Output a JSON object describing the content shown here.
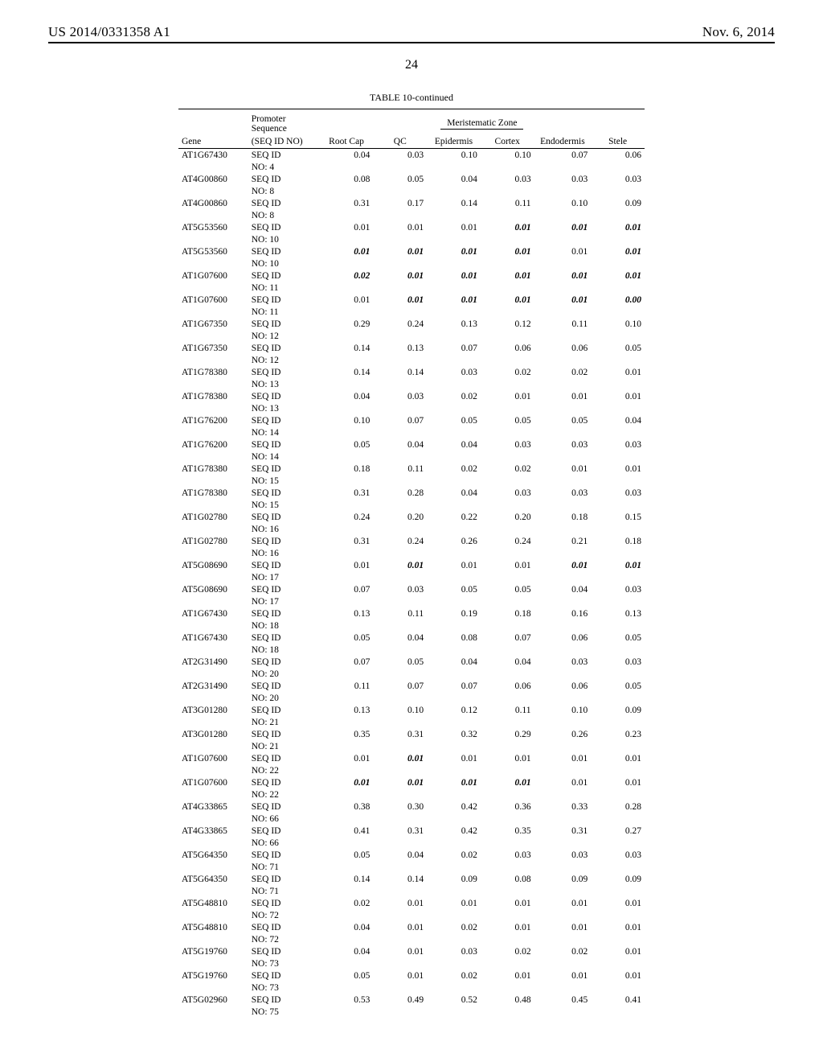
{
  "header": {
    "left": "US 2014/0331358 A1",
    "right": "Nov. 6, 2014"
  },
  "page_number": "24",
  "table_caption": "TABLE 10-continued",
  "column_group_labels": {
    "promoter": "Promoter",
    "sequence": "Sequence",
    "zone": "Meristematic Zone"
  },
  "columns": {
    "gene": "Gene",
    "seqidno": "(SEQ ID NO)",
    "rootcap": "Root Cap",
    "qc": "QC",
    "epidermis": "Epidermis",
    "cortex": "Cortex",
    "endodermis": "Endodermis",
    "stele": "Stele"
  },
  "rows": [
    {
      "gene": "AT1G67430",
      "seq": "SEQ ID",
      "no": "NO: 4",
      "v": [
        {
          "t": "0.04"
        },
        {
          "t": "0.03"
        },
        {
          "t": "0.10"
        },
        {
          "t": "0.10"
        },
        {
          "t": "0.07"
        },
        {
          "t": "0.06"
        }
      ]
    },
    {
      "gene": "AT4G00860",
      "seq": "SEQ ID",
      "no": "NO: 8",
      "v": [
        {
          "t": "0.08"
        },
        {
          "t": "0.05"
        },
        {
          "t": "0.04"
        },
        {
          "t": "0.03"
        },
        {
          "t": "0.03"
        },
        {
          "t": "0.03"
        }
      ]
    },
    {
      "gene": "AT4G00860",
      "seq": "SEQ ID",
      "no": "NO: 8",
      "v": [
        {
          "t": "0.31"
        },
        {
          "t": "0.17"
        },
        {
          "t": "0.14"
        },
        {
          "t": "0.11"
        },
        {
          "t": "0.10"
        },
        {
          "t": "0.09"
        }
      ]
    },
    {
      "gene": "AT5G53560",
      "seq": "SEQ ID",
      "no": "NO: 10",
      "v": [
        {
          "t": "0.01"
        },
        {
          "t": "0.01"
        },
        {
          "t": "0.01"
        },
        {
          "t": "0.01",
          "b": true
        },
        {
          "t": "0.01",
          "b": true
        },
        {
          "t": "0.01",
          "b": true
        }
      ]
    },
    {
      "gene": "AT5G53560",
      "seq": "SEQ ID",
      "no": "NO: 10",
      "v": [
        {
          "t": "0.01",
          "b": true
        },
        {
          "t": "0.01",
          "b": true
        },
        {
          "t": "0.01",
          "b": true
        },
        {
          "t": "0.01",
          "b": true
        },
        {
          "t": "0.01"
        },
        {
          "t": "0.01",
          "b": true
        }
      ]
    },
    {
      "gene": "AT1G07600",
      "seq": "SEQ ID",
      "no": "NO: 11",
      "v": [
        {
          "t": "0.02",
          "b": true
        },
        {
          "t": "0.01",
          "b": true
        },
        {
          "t": "0.01",
          "b": true
        },
        {
          "t": "0.01",
          "b": true
        },
        {
          "t": "0.01",
          "b": true
        },
        {
          "t": "0.01",
          "b": true
        }
      ]
    },
    {
      "gene": "AT1G07600",
      "seq": "SEQ ID",
      "no": "NO: 11",
      "v": [
        {
          "t": "0.01"
        },
        {
          "t": "0.01",
          "b": true
        },
        {
          "t": "0.01",
          "b": true
        },
        {
          "t": "0.01",
          "b": true
        },
        {
          "t": "0.01",
          "b": true
        },
        {
          "t": "0.00",
          "b": true
        }
      ]
    },
    {
      "gene": "AT1G67350",
      "seq": "SEQ ID",
      "no": "NO: 12",
      "v": [
        {
          "t": "0.29"
        },
        {
          "t": "0.24"
        },
        {
          "t": "0.13"
        },
        {
          "t": "0.12"
        },
        {
          "t": "0.11"
        },
        {
          "t": "0.10"
        }
      ]
    },
    {
      "gene": "AT1G67350",
      "seq": "SEQ ID",
      "no": "NO: 12",
      "v": [
        {
          "t": "0.14"
        },
        {
          "t": "0.13"
        },
        {
          "t": "0.07"
        },
        {
          "t": "0.06"
        },
        {
          "t": "0.06"
        },
        {
          "t": "0.05"
        }
      ]
    },
    {
      "gene": "AT1G78380",
      "seq": "SEQ ID",
      "no": "NO: 13",
      "v": [
        {
          "t": "0.14"
        },
        {
          "t": "0.14"
        },
        {
          "t": "0.03"
        },
        {
          "t": "0.02"
        },
        {
          "t": "0.02"
        },
        {
          "t": "0.01"
        }
      ]
    },
    {
      "gene": "AT1G78380",
      "seq": "SEQ ID",
      "no": "NO: 13",
      "v": [
        {
          "t": "0.04"
        },
        {
          "t": "0.03"
        },
        {
          "t": "0.02"
        },
        {
          "t": "0.01"
        },
        {
          "t": "0.01"
        },
        {
          "t": "0.01"
        }
      ]
    },
    {
      "gene": "AT1G76200",
      "seq": "SEQ ID",
      "no": "NO: 14",
      "v": [
        {
          "t": "0.10"
        },
        {
          "t": "0.07"
        },
        {
          "t": "0.05"
        },
        {
          "t": "0.05"
        },
        {
          "t": "0.05"
        },
        {
          "t": "0.04"
        }
      ]
    },
    {
      "gene": "AT1G76200",
      "seq": "SEQ ID",
      "no": "NO: 14",
      "v": [
        {
          "t": "0.05"
        },
        {
          "t": "0.04"
        },
        {
          "t": "0.04"
        },
        {
          "t": "0.03"
        },
        {
          "t": "0.03"
        },
        {
          "t": "0.03"
        }
      ]
    },
    {
      "gene": "AT1G78380",
      "seq": "SEQ ID",
      "no": "NO: 15",
      "v": [
        {
          "t": "0.18"
        },
        {
          "t": "0.11"
        },
        {
          "t": "0.02"
        },
        {
          "t": "0.02"
        },
        {
          "t": "0.01"
        },
        {
          "t": "0.01"
        }
      ]
    },
    {
      "gene": "AT1G78380",
      "seq": "SEQ ID",
      "no": "NO: 15",
      "v": [
        {
          "t": "0.31"
        },
        {
          "t": "0.28"
        },
        {
          "t": "0.04"
        },
        {
          "t": "0.03"
        },
        {
          "t": "0.03"
        },
        {
          "t": "0.03"
        }
      ]
    },
    {
      "gene": "AT1G02780",
      "seq": "SEQ ID",
      "no": "NO: 16",
      "v": [
        {
          "t": "0.24"
        },
        {
          "t": "0.20"
        },
        {
          "t": "0.22"
        },
        {
          "t": "0.20"
        },
        {
          "t": "0.18"
        },
        {
          "t": "0.15"
        }
      ]
    },
    {
      "gene": "AT1G02780",
      "seq": "SEQ ID",
      "no": "NO: 16",
      "v": [
        {
          "t": "0.31"
        },
        {
          "t": "0.24"
        },
        {
          "t": "0.26"
        },
        {
          "t": "0.24"
        },
        {
          "t": "0.21"
        },
        {
          "t": "0.18"
        }
      ]
    },
    {
      "gene": "AT5G08690",
      "seq": "SEQ ID",
      "no": "NO: 17",
      "v": [
        {
          "t": "0.01"
        },
        {
          "t": "0.01",
          "b": true
        },
        {
          "t": "0.01"
        },
        {
          "t": "0.01"
        },
        {
          "t": "0.01",
          "b": true
        },
        {
          "t": "0.01",
          "b": true
        }
      ]
    },
    {
      "gene": "AT5G08690",
      "seq": "SEQ ID",
      "no": "NO: 17",
      "v": [
        {
          "t": "0.07"
        },
        {
          "t": "0.03"
        },
        {
          "t": "0.05"
        },
        {
          "t": "0.05"
        },
        {
          "t": "0.04"
        },
        {
          "t": "0.03"
        }
      ]
    },
    {
      "gene": "AT1G67430",
      "seq": "SEQ ID",
      "no": "NO: 18",
      "v": [
        {
          "t": "0.13"
        },
        {
          "t": "0.11"
        },
        {
          "t": "0.19"
        },
        {
          "t": "0.18"
        },
        {
          "t": "0.16"
        },
        {
          "t": "0.13"
        }
      ]
    },
    {
      "gene": "AT1G67430",
      "seq": "SEQ ID",
      "no": "NO: 18",
      "v": [
        {
          "t": "0.05"
        },
        {
          "t": "0.04"
        },
        {
          "t": "0.08"
        },
        {
          "t": "0.07"
        },
        {
          "t": "0.06"
        },
        {
          "t": "0.05"
        }
      ]
    },
    {
      "gene": "AT2G31490",
      "seq": "SEQ ID",
      "no": "NO: 20",
      "v": [
        {
          "t": "0.07"
        },
        {
          "t": "0.05"
        },
        {
          "t": "0.04"
        },
        {
          "t": "0.04"
        },
        {
          "t": "0.03"
        },
        {
          "t": "0.03"
        }
      ]
    },
    {
      "gene": "AT2G31490",
      "seq": "SEQ ID",
      "no": "NO: 20",
      "v": [
        {
          "t": "0.11"
        },
        {
          "t": "0.07"
        },
        {
          "t": "0.07"
        },
        {
          "t": "0.06"
        },
        {
          "t": "0.06"
        },
        {
          "t": "0.05"
        }
      ]
    },
    {
      "gene": "AT3G01280",
      "seq": "SEQ ID",
      "no": "NO: 21",
      "v": [
        {
          "t": "0.13"
        },
        {
          "t": "0.10"
        },
        {
          "t": "0.12"
        },
        {
          "t": "0.11"
        },
        {
          "t": "0.10"
        },
        {
          "t": "0.09"
        }
      ]
    },
    {
      "gene": "AT3G01280",
      "seq": "SEQ ID",
      "no": "NO: 21",
      "v": [
        {
          "t": "0.35"
        },
        {
          "t": "0.31"
        },
        {
          "t": "0.32"
        },
        {
          "t": "0.29"
        },
        {
          "t": "0.26"
        },
        {
          "t": "0.23"
        }
      ]
    },
    {
      "gene": "AT1G07600",
      "seq": "SEQ ID",
      "no": "NO: 22",
      "v": [
        {
          "t": "0.01"
        },
        {
          "t": "0.01",
          "b": true
        },
        {
          "t": "0.01"
        },
        {
          "t": "0.01"
        },
        {
          "t": "0.01"
        },
        {
          "t": "0.01"
        }
      ]
    },
    {
      "gene": "AT1G07600",
      "seq": "SEQ ID",
      "no": "NO: 22",
      "v": [
        {
          "t": "0.01",
          "b": true
        },
        {
          "t": "0.01",
          "b": true
        },
        {
          "t": "0.01",
          "b": true
        },
        {
          "t": "0.01",
          "b": true
        },
        {
          "t": "0.01"
        },
        {
          "t": "0.01"
        }
      ]
    },
    {
      "gene": "AT4G33865",
      "seq": "SEQ ID",
      "no": "NO: 66",
      "v": [
        {
          "t": "0.38"
        },
        {
          "t": "0.30"
        },
        {
          "t": "0.42"
        },
        {
          "t": "0.36"
        },
        {
          "t": "0.33"
        },
        {
          "t": "0.28"
        }
      ]
    },
    {
      "gene": "AT4G33865",
      "seq": "SEQ ID",
      "no": "NO: 66",
      "v": [
        {
          "t": "0.41"
        },
        {
          "t": "0.31"
        },
        {
          "t": "0.42"
        },
        {
          "t": "0.35"
        },
        {
          "t": "0.31"
        },
        {
          "t": "0.27"
        }
      ]
    },
    {
      "gene": "AT5G64350",
      "seq": "SEQ ID",
      "no": "NO: 71",
      "v": [
        {
          "t": "0.05"
        },
        {
          "t": "0.04"
        },
        {
          "t": "0.02"
        },
        {
          "t": "0.03"
        },
        {
          "t": "0.03"
        },
        {
          "t": "0.03"
        }
      ]
    },
    {
      "gene": "AT5G64350",
      "seq": "SEQ ID",
      "no": "NO: 71",
      "v": [
        {
          "t": "0.14"
        },
        {
          "t": "0.14"
        },
        {
          "t": "0.09"
        },
        {
          "t": "0.08"
        },
        {
          "t": "0.09"
        },
        {
          "t": "0.09"
        }
      ]
    },
    {
      "gene": "AT5G48810",
      "seq": "SEQ ID",
      "no": "NO: 72",
      "v": [
        {
          "t": "0.02"
        },
        {
          "t": "0.01"
        },
        {
          "t": "0.01"
        },
        {
          "t": "0.01"
        },
        {
          "t": "0.01"
        },
        {
          "t": "0.01"
        }
      ]
    },
    {
      "gene": "AT5G48810",
      "seq": "SEQ ID",
      "no": "NO: 72",
      "v": [
        {
          "t": "0.04"
        },
        {
          "t": "0.01"
        },
        {
          "t": "0.02"
        },
        {
          "t": "0.01"
        },
        {
          "t": "0.01"
        },
        {
          "t": "0.01"
        }
      ]
    },
    {
      "gene": "AT5G19760",
      "seq": "SEQ ID",
      "no": "NO: 73",
      "v": [
        {
          "t": "0.04"
        },
        {
          "t": "0.01"
        },
        {
          "t": "0.03"
        },
        {
          "t": "0.02"
        },
        {
          "t": "0.02"
        },
        {
          "t": "0.01"
        }
      ]
    },
    {
      "gene": "AT5G19760",
      "seq": "SEQ ID",
      "no": "NO: 73",
      "v": [
        {
          "t": "0.05"
        },
        {
          "t": "0.01"
        },
        {
          "t": "0.02"
        },
        {
          "t": "0.01"
        },
        {
          "t": "0.01"
        },
        {
          "t": "0.01"
        }
      ]
    },
    {
      "gene": "AT5G02960",
      "seq": "SEQ ID",
      "no": "NO: 75",
      "v": [
        {
          "t": "0.53"
        },
        {
          "t": "0.49"
        },
        {
          "t": "0.52"
        },
        {
          "t": "0.48"
        },
        {
          "t": "0.45"
        },
        {
          "t": "0.41"
        }
      ]
    }
  ]
}
